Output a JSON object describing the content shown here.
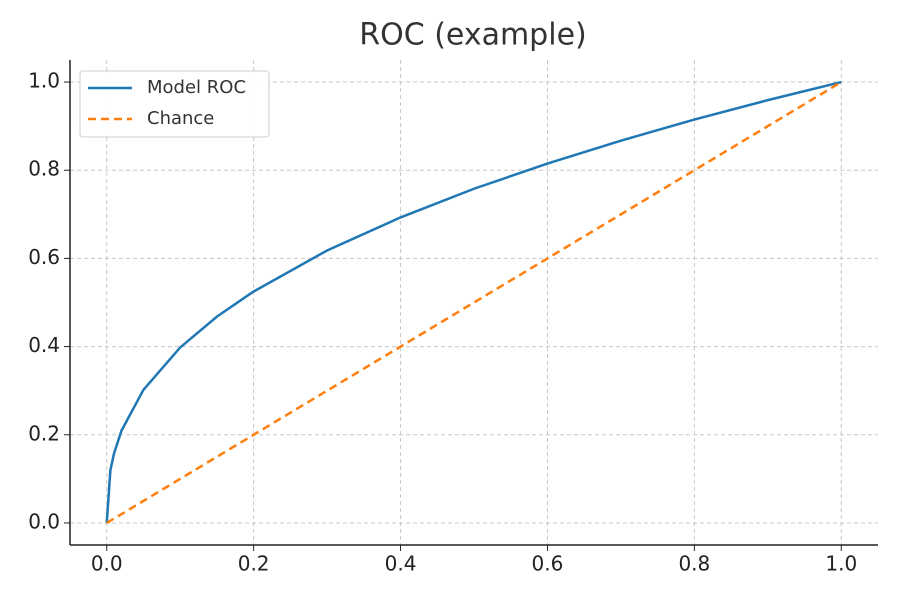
{
  "chart_data": {
    "type": "line",
    "title": "ROC (example)",
    "series": [
      {
        "name": "Model ROC",
        "color": "#1f77b4",
        "dash": "solid",
        "x": [
          0,
          0.005,
          0.01,
          0.02,
          0.05,
          0.1,
          0.15,
          0.2,
          0.3,
          0.4,
          0.5,
          0.6,
          0.7,
          0.8,
          0.9,
          1
        ],
        "values": [
          0,
          0.12,
          0.158,
          0.209,
          0.302,
          0.398,
          0.468,
          0.525,
          0.618,
          0.693,
          0.758,
          0.815,
          0.867,
          0.915,
          0.959,
          1
        ]
      },
      {
        "name": "Chance",
        "color": "#ff7f0e",
        "dash": "dashed",
        "x": [
          0,
          1
        ],
        "values": [
          0,
          1
        ]
      }
    ],
    "xlim": [
      -0.05,
      1.05
    ],
    "ylim": [
      -0.05,
      1.05
    ],
    "xticks": [
      {
        "value": 0,
        "label": "0.0"
      },
      0.2,
      0.4,
      0.6,
      0.8,
      {
        "value": 1,
        "label": "1.0"
      }
    ],
    "yticks": [
      {
        "value": 0,
        "label": "0.0"
      },
      0.2,
      0.4,
      0.6,
      0.8,
      {
        "value": 1,
        "label": "1.0"
      }
    ],
    "grid": true,
    "legend": "upper-left"
  }
}
